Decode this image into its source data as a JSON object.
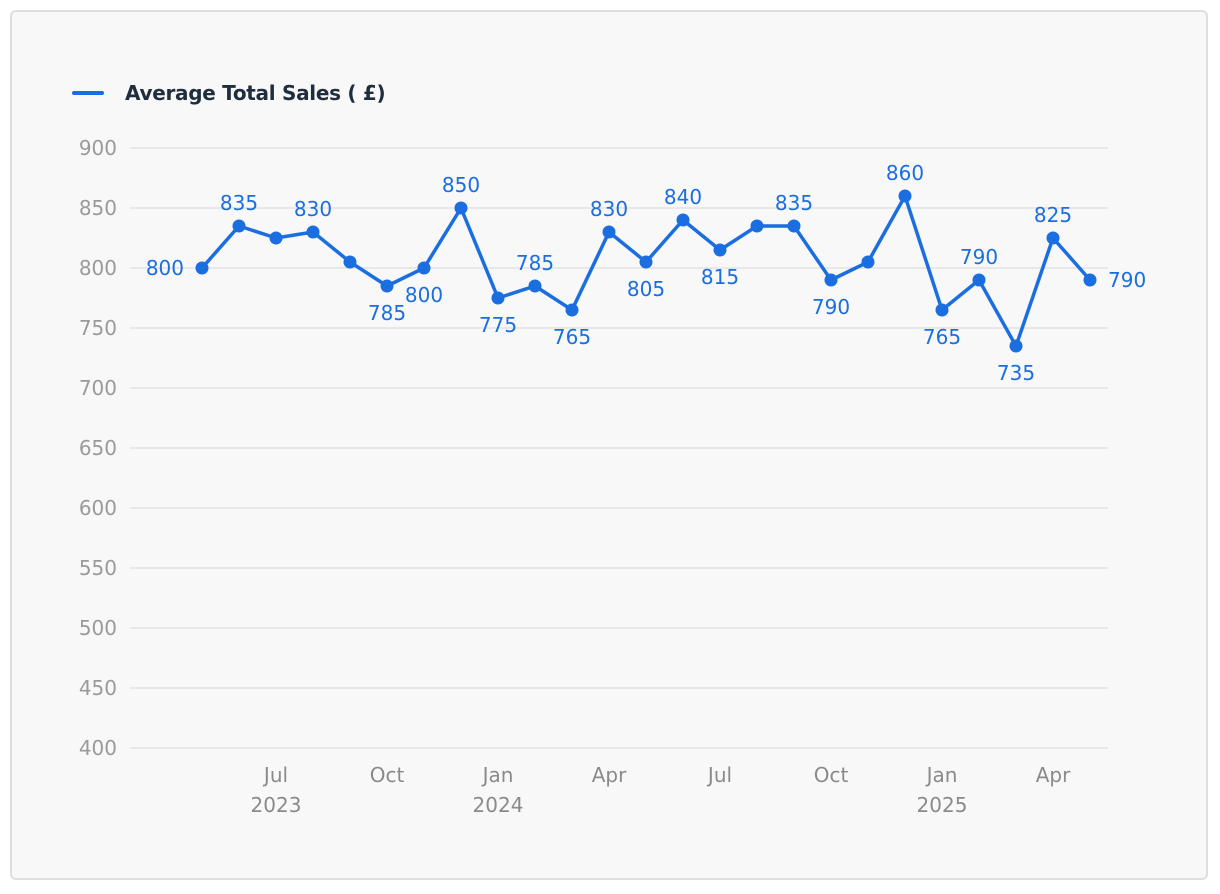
{
  "chart_data": {
    "type": "line",
    "legend": [
      {
        "name": "Average Total Sales ( £)",
        "color": "#1a6ee0"
      }
    ],
    "series": [
      {
        "name": "Average Total Sales ( £)",
        "color": "#1a6ee0",
        "x": [
          "2023-05",
          "2023-06",
          "2023-07",
          "2023-08",
          "2023-09",
          "2023-10",
          "2023-11",
          "2023-12",
          "2024-01",
          "2024-02",
          "2024-03",
          "2024-04",
          "2024-05",
          "2024-06",
          "2024-07",
          "2024-08",
          "2024-09",
          "2024-10",
          "2024-11",
          "2024-12",
          "2025-01",
          "2025-02",
          "2025-03",
          "2025-04",
          "2025-05"
        ],
        "values": [
          800,
          835,
          825,
          830,
          805,
          785,
          800,
          850,
          775,
          785,
          765,
          830,
          805,
          840,
          815,
          835,
          835,
          790,
          805,
          860,
          765,
          790,
          735,
          825,
          790
        ],
        "data_labels": [
          "800",
          "835",
          "",
          "830",
          "",
          "785",
          "800",
          "850",
          "775",
          "785",
          "765",
          "830",
          "805",
          "840",
          "815",
          "",
          "835",
          "790",
          "",
          "860",
          "765",
          "790",
          "735",
          "825",
          "790"
        ]
      }
    ],
    "yticks": [
      "900",
      "850",
      "800",
      "750",
      "700",
      "650",
      "600",
      "550",
      "500",
      "450",
      "400"
    ],
    "ylim": [
      400,
      900
    ],
    "xticks": [
      {
        "x": "2023-07",
        "label": "Jul",
        "year": "2023"
      },
      {
        "x": "2023-10",
        "label": "Oct",
        "year": ""
      },
      {
        "x": "2024-01",
        "label": "Jan",
        "year": "2024"
      },
      {
        "x": "2024-04",
        "label": "Apr",
        "year": ""
      },
      {
        "x": "2024-07",
        "label": "Jul",
        "year": ""
      },
      {
        "x": "2024-10",
        "label": "Oct",
        "year": ""
      },
      {
        "x": "2025-01",
        "label": "Jan",
        "year": "2025"
      },
      {
        "x": "2025-04",
        "label": "Apr",
        "year": ""
      }
    ],
    "grid": true,
    "legend_position": "top-left"
  }
}
